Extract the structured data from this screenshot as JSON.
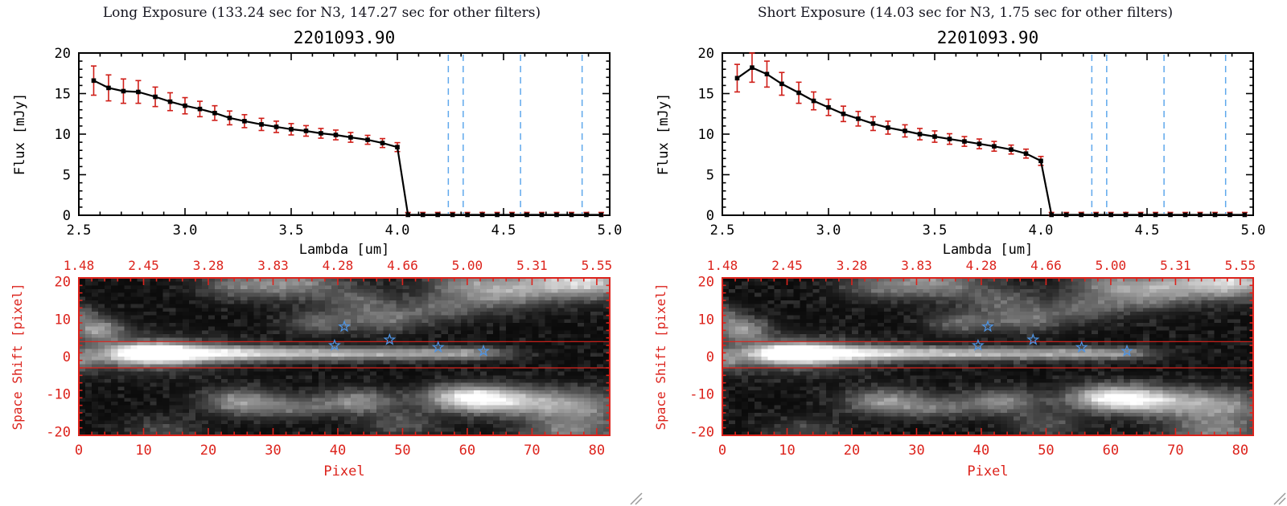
{
  "window": {
    "background": "#ffffff"
  },
  "colors": {
    "plot_black": "#000000",
    "red_axis": "#dc231c",
    "error_red": "#cf1d17",
    "dashed_blue": "#5fa8ec",
    "star_blue": "#4e95e6",
    "header_text": "#15151f",
    "grip_gray": "#9a9a9a"
  },
  "panels": [
    {
      "id": "long-exposure",
      "header": "Long Exposure (133.24 sec for N3, 147.27 sec for other filters)",
      "spectrum_chart": 0,
      "image_chart": 1
    },
    {
      "id": "short-exposure",
      "header": "Short Exposure (14.03 sec for N3, 1.75 sec for other filters)",
      "spectrum_chart": 2,
      "image_chart": 3
    }
  ],
  "chart_data": [
    {
      "type": "line",
      "name": "long-exposure-spectrum",
      "title": "2201093.90",
      "xlabel": "Lambda [um]",
      "ylabel": "Flux [mJy]",
      "xlim": [
        2.5,
        5.0
      ],
      "ylim": [
        0,
        20
      ],
      "xticks": [
        2.5,
        3.0,
        3.5,
        4.0,
        4.5,
        5.0
      ],
      "xtick_labels": [
        "2.5",
        "3.0",
        "3.5",
        "4.0",
        "4.5",
        "5.0"
      ],
      "xtick_minor": 0.1,
      "yticks": [
        0,
        5,
        10,
        15,
        20
      ],
      "ytick_labels": [
        "0",
        "5",
        "10",
        "15",
        "20"
      ],
      "ytick_minor": 1,
      "dashed_vlines_x": [
        4.24,
        4.31,
        4.58,
        4.87
      ],
      "x": [
        2.57,
        2.64,
        2.71,
        2.78,
        2.86,
        2.93,
        3.0,
        3.07,
        3.14,
        3.21,
        3.28,
        3.36,
        3.43,
        3.5,
        3.57,
        3.64,
        3.71,
        3.78,
        3.86,
        3.93,
        4.0,
        4.05,
        4.12,
        4.19,
        4.26,
        4.33,
        4.4,
        4.47,
        4.54,
        4.61,
        4.68,
        4.75,
        4.82,
        4.89,
        4.96
      ],
      "y": [
        16.6,
        15.7,
        15.3,
        15.2,
        14.6,
        14.0,
        13.5,
        13.1,
        12.6,
        12.0,
        11.6,
        11.2,
        10.9,
        10.6,
        10.4,
        10.1,
        9.9,
        9.6,
        9.3,
        8.9,
        8.4,
        0.05,
        0.05,
        0.05,
        0.05,
        0.05,
        0.05,
        0.05,
        0.05,
        0.05,
        0.05,
        0.05,
        0.05,
        0.05,
        0.05
      ],
      "yerr": [
        1.8,
        1.6,
        1.5,
        1.4,
        1.2,
        1.1,
        1.0,
        0.95,
        0.9,
        0.85,
        0.8,
        0.75,
        0.7,
        0.7,
        0.65,
        0.6,
        0.6,
        0.6,
        0.55,
        0.55,
        0.55,
        0.3,
        0.3,
        0.3,
        0.3,
        0.3,
        0.3,
        0.3,
        0.3,
        0.3,
        0.3,
        0.3,
        0.3,
        0.3,
        0.3
      ]
    },
    {
      "type": "heatmap",
      "name": "long-exposure-2d-spectrum",
      "xlabel": "Pixel",
      "ylabel": "Space Shift [pixel]",
      "top_axis_labels": [
        "1.48",
        "2.45",
        "3.28",
        "3.83",
        "4.28",
        "4.66",
        "5.00",
        "5.31",
        "5.55"
      ],
      "xlim": [
        0,
        82
      ],
      "ylim": [
        -21,
        21
      ],
      "xticks": [
        0,
        10,
        20,
        30,
        40,
        50,
        60,
        70,
        80
      ],
      "xtick_labels": [
        "0",
        "10",
        "20",
        "30",
        "40",
        "50",
        "60",
        "70",
        "80"
      ],
      "xtick_minor": 2,
      "yticks": [
        -20,
        -10,
        0,
        10,
        20
      ],
      "ytick_labels": [
        "-20",
        "-10",
        "0",
        "10",
        "20"
      ],
      "ytick_minor": 2,
      "extraction_lines_y": [
        4,
        -3
      ],
      "stars": [
        [
          41,
          8
        ],
        [
          39.5,
          3
        ],
        [
          48,
          4.5
        ],
        [
          55.5,
          2.5
        ],
        [
          62.5,
          1.5
        ]
      ],
      "description": "Grayscale 2D spectral image: bright horizontal source trace near space-shift 0 from pixel 5 to 62, diffuse background clumps above and below; red lines mark extraction aperture; blue stars mark contaminating sources.",
      "noise_seed": 7,
      "blobs": [
        [
          11,
          0.8,
          4.5,
          1.7,
          1.05
        ],
        [
          11,
          0.5,
          8,
          3.2,
          0.3
        ],
        [
          20,
          0.8,
          7,
          1.5,
          0.55
        ],
        [
          32,
          0.8,
          9,
          1.3,
          0.45
        ],
        [
          45,
          0.8,
          9,
          1.25,
          0.38
        ],
        [
          56,
          0.8,
          6,
          1.2,
          0.3
        ],
        [
          62,
          0.8,
          4,
          1.1,
          0.22
        ],
        [
          0,
          -1,
          2,
          2,
          0.35
        ],
        [
          60,
          -11,
          4.5,
          2.3,
          0.8
        ],
        [
          67,
          -12,
          5,
          2.5,
          0.55
        ],
        [
          77,
          -13,
          5,
          2.8,
          0.45
        ],
        [
          25,
          -12,
          4,
          2.3,
          0.48
        ],
        [
          33,
          -13.5,
          4,
          2,
          0.3
        ],
        [
          43,
          -12,
          4,
          2.2,
          0.45
        ],
        [
          50,
          -18,
          4,
          2.5,
          0.22
        ],
        [
          76,
          -20,
          5,
          3,
          0.4
        ],
        [
          13,
          -20,
          4,
          2.5,
          0.18
        ],
        [
          3,
          7,
          2.8,
          2.2,
          0.5
        ],
        [
          0,
          11,
          2,
          2,
          0.3
        ],
        [
          37,
          9,
          3.5,
          2,
          0.3
        ],
        [
          47,
          10,
          4,
          2.3,
          0.33
        ],
        [
          43,
          15,
          4,
          2.6,
          0.25
        ],
        [
          33,
          20,
          5,
          3,
          0.45
        ],
        [
          24,
          19,
          4,
          2.5,
          0.28
        ],
        [
          56,
          13,
          4,
          2.4,
          0.28
        ],
        [
          65,
          17,
          5,
          3,
          0.42
        ],
        [
          73,
          20,
          5,
          3,
          0.5
        ],
        [
          80,
          20,
          4,
          3,
          0.55
        ],
        [
          59,
          20,
          4,
          2.5,
          0.3
        ]
      ]
    },
    {
      "type": "line",
      "name": "short-exposure-spectrum",
      "title": "2201093.90",
      "xlabel": "Lambda [um]",
      "ylabel": "Flux [mJy]",
      "xlim": [
        2.5,
        5.0
      ],
      "ylim": [
        0,
        20
      ],
      "xticks": [
        2.5,
        3.0,
        3.5,
        4.0,
        4.5,
        5.0
      ],
      "xtick_labels": [
        "2.5",
        "3.0",
        "3.5",
        "4.0",
        "4.5",
        "5.0"
      ],
      "xtick_minor": 0.1,
      "yticks": [
        0,
        5,
        10,
        15,
        20
      ],
      "ytick_labels": [
        "0",
        "5",
        "10",
        "15",
        "20"
      ],
      "ytick_minor": 1,
      "dashed_vlines_x": [
        4.24,
        4.31,
        4.58,
        4.87
      ],
      "x": [
        2.57,
        2.64,
        2.71,
        2.78,
        2.86,
        2.93,
        3.0,
        3.07,
        3.14,
        3.21,
        3.28,
        3.36,
        3.43,
        3.5,
        3.57,
        3.64,
        3.71,
        3.78,
        3.86,
        3.93,
        4.0,
        4.05,
        4.12,
        4.19,
        4.26,
        4.33,
        4.4,
        4.47,
        4.54,
        4.61,
        4.68,
        4.75,
        4.82,
        4.89,
        4.96
      ],
      "y": [
        16.9,
        18.2,
        17.4,
        16.2,
        15.1,
        14.1,
        13.3,
        12.5,
        11.9,
        11.3,
        10.8,
        10.4,
        10.0,
        9.7,
        9.4,
        9.1,
        8.8,
        8.5,
        8.1,
        7.6,
        6.7,
        0.05,
        0.05,
        0.05,
        0.05,
        0.05,
        0.05,
        0.05,
        0.05,
        0.05,
        0.05,
        0.05,
        0.05,
        0.05,
        0.05
      ],
      "yerr": [
        1.7,
        1.8,
        1.6,
        1.4,
        1.3,
        1.1,
        1.0,
        0.95,
        0.9,
        0.85,
        0.8,
        0.75,
        0.7,
        0.7,
        0.65,
        0.6,
        0.6,
        0.6,
        0.55,
        0.55,
        0.55,
        0.3,
        0.3,
        0.3,
        0.3,
        0.3,
        0.3,
        0.3,
        0.3,
        0.3,
        0.3,
        0.3,
        0.3,
        0.3,
        0.3
      ]
    },
    {
      "type": "heatmap",
      "name": "short-exposure-2d-spectrum",
      "xlabel": "Pixel",
      "ylabel": "Space Shift [pixel]",
      "top_axis_labels": [
        "1.48",
        "2.45",
        "3.28",
        "3.83",
        "4.28",
        "4.66",
        "5.00",
        "5.31",
        "5.55"
      ],
      "xlim": [
        0,
        82
      ],
      "ylim": [
        -21,
        21
      ],
      "xticks": [
        0,
        10,
        20,
        30,
        40,
        50,
        60,
        70,
        80
      ],
      "xtick_labels": [
        "0",
        "10",
        "20",
        "30",
        "40",
        "50",
        "60",
        "70",
        "80"
      ],
      "xtick_minor": 2,
      "yticks": [
        -20,
        -10,
        0,
        10,
        20
      ],
      "ytick_labels": [
        "-20",
        "-10",
        "0",
        "10",
        "20"
      ],
      "ytick_minor": 2,
      "extraction_lines_y": [
        4,
        -3
      ],
      "stars": [
        [
          41,
          8
        ],
        [
          39.5,
          3
        ],
        [
          48,
          4.5
        ],
        [
          55.5,
          2.5
        ],
        [
          62.5,
          1.5
        ]
      ],
      "description": "Grayscale 2D spectral image: bright horizontal source trace near space-shift 0 from pixel 5 to 62, diffuse background clumps above and below; red lines mark extraction aperture; blue stars mark contaminating sources.",
      "noise_seed": 11,
      "blobs": [
        [
          11,
          0.8,
          4.5,
          1.7,
          1.05
        ],
        [
          11,
          0.5,
          8,
          3.2,
          0.3
        ],
        [
          20,
          0.8,
          7,
          1.5,
          0.55
        ],
        [
          32,
          0.8,
          9,
          1.3,
          0.45
        ],
        [
          45,
          0.8,
          9,
          1.25,
          0.38
        ],
        [
          56,
          0.8,
          6,
          1.2,
          0.3
        ],
        [
          62,
          0.8,
          4,
          1.1,
          0.22
        ],
        [
          0,
          -1,
          2,
          2,
          0.35
        ],
        [
          60,
          -11,
          4.5,
          2.3,
          0.8
        ],
        [
          67,
          -12,
          5,
          2.5,
          0.55
        ],
        [
          77,
          -13,
          5,
          2.8,
          0.45
        ],
        [
          25,
          -12,
          4,
          2.3,
          0.48
        ],
        [
          33,
          -13.5,
          4,
          2,
          0.3
        ],
        [
          43,
          -12,
          4,
          2.2,
          0.45
        ],
        [
          50,
          -18,
          4,
          2.5,
          0.22
        ],
        [
          76,
          -20,
          5,
          3,
          0.4
        ],
        [
          13,
          -20,
          4,
          2.5,
          0.18
        ],
        [
          3,
          7,
          2.8,
          2.2,
          0.5
        ],
        [
          0,
          11,
          2,
          2,
          0.3
        ],
        [
          37,
          9,
          3.5,
          2,
          0.3
        ],
        [
          47,
          10,
          4,
          2.3,
          0.33
        ],
        [
          43,
          15,
          4,
          2.6,
          0.25
        ],
        [
          33,
          20,
          5,
          3,
          0.45
        ],
        [
          24,
          19,
          4,
          2.5,
          0.28
        ],
        [
          56,
          13,
          4,
          2.4,
          0.28
        ],
        [
          65,
          17,
          5,
          3,
          0.42
        ],
        [
          73,
          20,
          5,
          3,
          0.5
        ],
        [
          80,
          20,
          4,
          3,
          0.55
        ],
        [
          59,
          20,
          4,
          2.5,
          0.3
        ]
      ]
    }
  ]
}
